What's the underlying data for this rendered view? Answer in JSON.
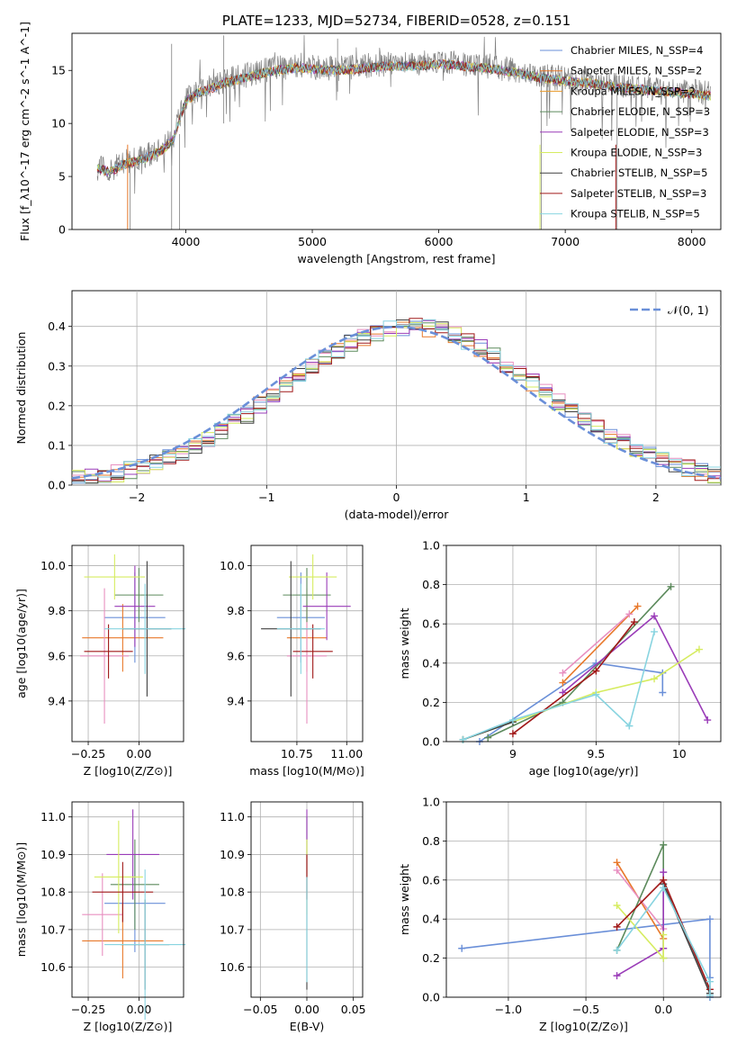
{
  "colors": [
    "#6a8fd8",
    "#e8782a",
    "#e88fc0",
    "#5c8a5c",
    "#9a3cb8",
    "#d6ec60",
    "#404040",
    "#a01818",
    "#88d4e0"
  ],
  "chart_data": [
    {
      "id": "spectrum",
      "type": "line",
      "title": "PLATE=1233, MJD=52734, FIBERID=0528, z=0.151",
      "xlabel": "wavelength [Angstrom, rest frame]",
      "ylabel": "Flux [f_λ10^-17 erg cm^-2 s^-1 A^-1]",
      "xlim": [
        3100,
        8230
      ],
      "ylim": [
        0,
        18.5
      ],
      "xticks": [
        4000,
        5000,
        6000,
        7000,
        8000
      ],
      "yticks": [
        0,
        5,
        10,
        15
      ],
      "grid": false,
      "legend_position": "top-right",
      "legend": [
        {
          "label": "Chabrier MILES, N_SSP=4",
          "color": "#6a8fd8"
        },
        {
          "label": "Salpeter MILES, N_SSP=2",
          "color": "#e8782a"
        },
        {
          "label": "Kroupa MILES, N_SSP=2",
          "color": "#e89a2a"
        },
        {
          "label": "Chabrier ELODIE, N_SSP=3",
          "color": "#5c8a5c"
        },
        {
          "label": "Salpeter ELODIE, N_SSP=3",
          "color": "#9a3cb8"
        },
        {
          "label": "Kroupa ELODIE, N_SSP=3",
          "color": "#d6ec60"
        },
        {
          "label": "Chabrier STELIB, N_SSP=5",
          "color": "#404040"
        },
        {
          "label": "Salpeter STELIB, N_SSP=3",
          "color": "#a01818"
        },
        {
          "label": "Kroupa STELIB, N_SSP=5",
          "color": "#88d4e0"
        }
      ],
      "continuum": [
        [
          3300,
          6.0
        ],
        [
          3400,
          5.6
        ],
        [
          3500,
          6.3
        ],
        [
          3600,
          6.6
        ],
        [
          3700,
          7.0
        ],
        [
          3800,
          7.6
        ],
        [
          3900,
          8.6
        ],
        [
          3950,
          10.6
        ],
        [
          4000,
          12.3
        ],
        [
          4100,
          13.1
        ],
        [
          4200,
          13.5
        ],
        [
          4300,
          14.0
        ],
        [
          4400,
          14.3
        ],
        [
          4500,
          14.6
        ],
        [
          4600,
          14.9
        ],
        [
          4700,
          15.2
        ],
        [
          4800,
          15.3
        ],
        [
          4900,
          15.5
        ],
        [
          5000,
          15.3
        ],
        [
          5200,
          15.2
        ],
        [
          5400,
          15.4
        ],
        [
          5600,
          15.6
        ],
        [
          5800,
          15.6
        ],
        [
          6000,
          15.8
        ],
        [
          6200,
          15.6
        ],
        [
          6400,
          15.4
        ],
        [
          6600,
          15.0
        ],
        [
          6800,
          14.5
        ],
        [
          7000,
          14.2
        ],
        [
          7200,
          14.0
        ],
        [
          7400,
          13.6
        ],
        [
          7600,
          13.4
        ],
        [
          7800,
          13.2
        ],
        [
          8000,
          13.0
        ],
        [
          8150,
          12.8
        ]
      ],
      "data_color": "#808080"
    },
    {
      "id": "residuals",
      "type": "histogram",
      "xlabel": "(data-model)/error",
      "ylabel": "Normed distribution",
      "xlim": [
        -2.5,
        2.5
      ],
      "ylim": [
        0,
        0.49
      ],
      "xticks": [
        -2,
        -1,
        0,
        1,
        2
      ],
      "yticks": [
        0.0,
        0.1,
        0.2,
        0.3,
        0.4
      ],
      "grid": true,
      "legend_position": "top-right",
      "legend_label": "𝒩(0, 1)",
      "bin_width": 0.1
    },
    {
      "id": "z-age",
      "type": "scatter",
      "xlabel": "Z [log10(Z/Z⊙)]",
      "ylabel": "age  [log10(age/yr)]",
      "xlim": [
        -0.33,
        0.22
      ],
      "ylim": [
        9.22,
        10.09
      ],
      "xticks": [
        -0.25,
        0.0
      ],
      "yticks": [
        9.4,
        9.6,
        9.8,
        10.0
      ],
      "tick_labels_x": [
        "−0.25",
        "0.00"
      ],
      "grid": true,
      "crosses": [
        {
          "x": -0.02,
          "y": 9.77,
          "xerr": 0.15,
          "yerr": 0.2,
          "c": 0
        },
        {
          "x": -0.08,
          "y": 9.68,
          "xerr": 0.2,
          "yerr": 0.15,
          "c": 1
        },
        {
          "x": -0.17,
          "y": 9.6,
          "xerr": 0.12,
          "yerr": 0.3,
          "c": 2
        },
        {
          "x": 0.0,
          "y": 9.87,
          "xerr": 0.12,
          "yerr": 0.12,
          "c": 3
        },
        {
          "x": -0.02,
          "y": 9.82,
          "xerr": 0.1,
          "yerr": 0.18,
          "c": 4
        },
        {
          "x": -0.12,
          "y": 9.95,
          "xerr": 0.15,
          "yerr": 0.1,
          "c": 5
        },
        {
          "x": 0.04,
          "y": 9.72,
          "xerr": 0.12,
          "yerr": 0.3,
          "c": 6
        },
        {
          "x": -0.15,
          "y": 9.62,
          "xerr": 0.12,
          "yerr": 0.12,
          "c": 7
        },
        {
          "x": 0.03,
          "y": 9.72,
          "xerr": 0.2,
          "yerr": 0.2,
          "c": 8
        }
      ]
    },
    {
      "id": "mass-age",
      "type": "scatter",
      "xlabel": "mass [log10(M/M⊙)]",
      "ylabel": "",
      "xlim": [
        10.52,
        11.08
      ],
      "ylim": [
        9.22,
        10.09
      ],
      "xticks": [
        10.75,
        11.0
      ],
      "yticks": [
        9.4,
        9.6,
        9.8,
        10.0
      ],
      "tick_labels_x": [
        "10.75",
        "11.00"
      ],
      "grid": true,
      "crosses": [
        {
          "x": 10.77,
          "y": 9.77,
          "xerr": 0.12,
          "yerr": 0.2,
          "c": 0
        },
        {
          "x": 10.8,
          "y": 9.68,
          "xerr": 0.1,
          "yerr": 0.15,
          "c": 1
        },
        {
          "x": 10.8,
          "y": 9.6,
          "xerr": 0.1,
          "yerr": 0.3,
          "c": 2
        },
        {
          "x": 10.8,
          "y": 9.87,
          "xerr": 0.12,
          "yerr": 0.12,
          "c": 3
        },
        {
          "x": 10.9,
          "y": 9.82,
          "xerr": 0.12,
          "yerr": 0.15,
          "c": 4
        },
        {
          "x": 10.83,
          "y": 9.95,
          "xerr": 0.12,
          "yerr": 0.1,
          "c": 5
        },
        {
          "x": 10.72,
          "y": 9.72,
          "xerr": 0.15,
          "yerr": 0.3,
          "c": 6
        },
        {
          "x": 10.83,
          "y": 9.62,
          "xerr": 0.1,
          "yerr": 0.12,
          "c": 7
        },
        {
          "x": 10.77,
          "y": 9.72,
          "xerr": 0.12,
          "yerr": 0.2,
          "c": 8
        }
      ]
    },
    {
      "id": "age-weight",
      "type": "line",
      "xlabel": "age  [log10(age/yr)]",
      "ylabel": "mass weight",
      "xlim": [
        8.6,
        10.25
      ],
      "ylim": [
        0,
        1.0
      ],
      "xticks": [
        9.0,
        9.5,
        10.0
      ],
      "yticks": [
        0.0,
        0.2,
        0.4,
        0.6,
        0.8,
        1.0
      ],
      "grid": true,
      "series": [
        {
          "c": 0,
          "points": [
            [
              8.8,
              0.0
            ],
            [
              9.5,
              0.4
            ],
            [
              9.9,
              0.35
            ],
            [
              9.9,
              0.25
            ]
          ]
        },
        {
          "c": 1,
          "points": [
            [
              9.3,
              0.3
            ],
            [
              9.75,
              0.69
            ]
          ]
        },
        {
          "c": 2,
          "points": [
            [
              9.3,
              0.35
            ],
            [
              9.7,
              0.65
            ]
          ]
        },
        {
          "c": 3,
          "points": [
            [
              8.85,
              0.02
            ],
            [
              9.3,
              0.2
            ],
            [
              9.95,
              0.79
            ]
          ]
        },
        {
          "c": 4,
          "points": [
            [
              9.3,
              0.25
            ],
            [
              9.85,
              0.64
            ],
            [
              10.17,
              0.11
            ]
          ]
        },
        {
          "c": 5,
          "points": [
            [
              8.7,
              0.01
            ],
            [
              9.5,
              0.25
            ],
            [
              9.85,
              0.32
            ],
            [
              10.12,
              0.47
            ]
          ]
        },
        {
          "c": 6,
          "points": [
            [
              8.7,
              0.01
            ],
            [
              9.0,
              0.1
            ]
          ]
        },
        {
          "c": 7,
          "points": [
            [
              9.0,
              0.04
            ],
            [
              9.5,
              0.36
            ],
            [
              9.73,
              0.61
            ]
          ]
        },
        {
          "c": 8,
          "points": [
            [
              8.7,
              0.01
            ],
            [
              9.0,
              0.11
            ],
            [
              9.5,
              0.24
            ],
            [
              9.7,
              0.08
            ],
            [
              9.85,
              0.56
            ],
            [
              9.7,
              0.08
            ]
          ]
        }
      ]
    },
    {
      "id": "z-mass",
      "type": "scatter",
      "xlabel": "Z [log10(Z/Z⊙)]",
      "ylabel": "mass [log10(M/M⊙)]",
      "xlim": [
        -0.33,
        0.22
      ],
      "ylim": [
        10.52,
        11.04
      ],
      "xticks": [
        -0.25,
        0.0
      ],
      "yticks": [
        10.6,
        10.7,
        10.8,
        10.9,
        11.0
      ],
      "tick_labels_x": [
        "−0.25",
        "0.00"
      ],
      "grid": true,
      "crosses": [
        {
          "x": -0.02,
          "y": 10.77,
          "xerr": 0.15,
          "yerr": 0.13,
          "c": 0
        },
        {
          "x": -0.08,
          "y": 10.67,
          "xerr": 0.2,
          "yerr": 0.1,
          "c": 1
        },
        {
          "x": -0.18,
          "y": 10.74,
          "xerr": 0.1,
          "yerr": 0.11,
          "c": 2
        },
        {
          "x": -0.02,
          "y": 10.82,
          "xerr": 0.12,
          "yerr": 0.12,
          "c": 3
        },
        {
          "x": -0.03,
          "y": 10.9,
          "xerr": 0.13,
          "yerr": 0.12,
          "c": 4
        },
        {
          "x": -0.1,
          "y": 10.84,
          "xerr": 0.12,
          "yerr": 0.15,
          "c": 5
        },
        {
          "x": 0.03,
          "y": 10.66,
          "xerr": 0.12,
          "yerr": 0.12,
          "c": 6
        },
        {
          "x": -0.08,
          "y": 10.8,
          "xerr": 0.15,
          "yerr": 0.08,
          "c": 7
        },
        {
          "x": 0.03,
          "y": 10.66,
          "xerr": 0.2,
          "yerr": 0.2,
          "c": 8
        }
      ]
    },
    {
      "id": "ebv-mass",
      "type": "scatter",
      "xlabel": "E(B-V)",
      "ylabel": "",
      "xlim": [
        -0.06,
        0.06
      ],
      "ylim": [
        10.52,
        11.04
      ],
      "xticks": [
        -0.05,
        0.0,
        0.05
      ],
      "yticks": [
        10.6,
        10.7,
        10.8,
        10.9,
        11.0
      ],
      "tick_labels_x": [
        "−0.05",
        "0.00",
        "0.05"
      ],
      "grid": true,
      "crosses": [
        {
          "x": 0.0,
          "y": 10.77,
          "xerr": 0.0,
          "yerr": 0.23,
          "c": 6
        },
        {
          "x": 0.0,
          "y": 10.9,
          "xerr": 0.0,
          "yerr": 0.12,
          "c": 4
        },
        {
          "x": 0.0,
          "y": 10.84,
          "xerr": 0.0,
          "yerr": 0.1,
          "c": 5
        },
        {
          "x": 0.0,
          "y": 10.84,
          "xerr": 0.0,
          "yerr": 0.06,
          "c": 7
        },
        {
          "x": 0.0,
          "y": 10.7,
          "xerr": 0.0,
          "yerr": 0.14,
          "c": 8
        }
      ]
    },
    {
      "id": "z-weight",
      "type": "line",
      "xlabel": "Z [log10(Z/Z⊙)]",
      "ylabel": "mass weight",
      "xlim": [
        -1.4,
        0.37
      ],
      "ylim": [
        0,
        1.0
      ],
      "xticks": [
        -1.0,
        -0.5,
        0.0
      ],
      "yticks": [
        0.0,
        0.2,
        0.4,
        0.6,
        0.8,
        1.0
      ],
      "tick_labels_x": [
        "−1.0",
        "−0.5",
        "0.0"
      ],
      "grid": true,
      "series": [
        {
          "c": 0,
          "points": [
            [
              -1.3,
              0.25
            ],
            [
              0.3,
              0.4
            ],
            [
              0.3,
              0.1
            ],
            [
              0.3,
              0.0
            ]
          ]
        },
        {
          "c": 1,
          "points": [
            [
              -0.3,
              0.69
            ],
            [
              0.0,
              0.3
            ]
          ]
        },
        {
          "c": 2,
          "points": [
            [
              -0.3,
              0.65
            ],
            [
              0.0,
              0.35
            ]
          ]
        },
        {
          "c": 3,
          "points": [
            [
              -0.3,
              0.24
            ],
            [
              0.0,
              0.78
            ],
            [
              0.0,
              0.2
            ]
          ]
        },
        {
          "c": 4,
          "points": [
            [
              -0.3,
              0.11
            ],
            [
              0.0,
              0.25
            ],
            [
              0.0,
              0.64
            ]
          ]
        },
        {
          "c": 5,
          "points": [
            [
              -0.3,
              0.47
            ],
            [
              0.0,
              0.2
            ],
            [
              0.0,
              0.32
            ]
          ]
        },
        {
          "c": 6,
          "points": [
            [
              0.0,
              0.58
            ],
            [
              0.3,
              0.02
            ]
          ]
        },
        {
          "c": 7,
          "points": [
            [
              -0.3,
              0.36
            ],
            [
              0.0,
              0.6
            ],
            [
              0.3,
              0.04
            ]
          ]
        },
        {
          "c": 8,
          "points": [
            [
              -0.3,
              0.24
            ],
            [
              0.0,
              0.56
            ],
            [
              0.3,
              0.08
            ],
            [
              0.3,
              0.01
            ]
          ]
        }
      ]
    }
  ]
}
